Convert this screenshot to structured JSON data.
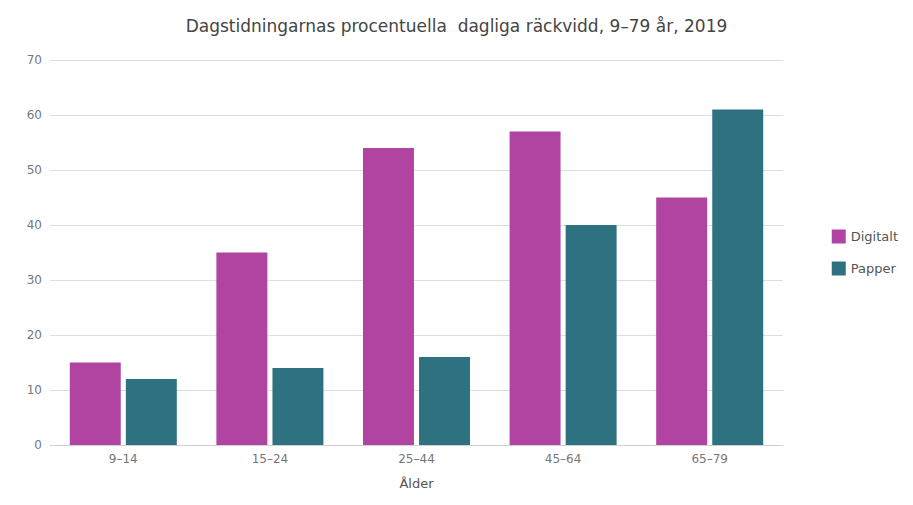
{
  "chart_data": {
    "type": "bar",
    "title": "Dagstidningarnas procentuella  dagliga räckvidd, 9–79 år, 2019",
    "xlabel": "Ålder",
    "categories": [
      "9–14",
      "15–24",
      "25–44",
      "45–64",
      "65–79"
    ],
    "series": [
      {
        "name": "Digitalt",
        "color": "#b044a0",
        "values": [
          15,
          35,
          54,
          57,
          45
        ]
      },
      {
        "name": "Papper",
        "color": "#2e7281",
        "values": [
          12,
          14,
          16,
          40,
          61
        ]
      }
    ],
    "ylim": [
      0,
      70
    ],
    "yticks": [
      0,
      10,
      20,
      30,
      40,
      50,
      60,
      70
    ],
    "grid": true,
    "legend": "right"
  }
}
